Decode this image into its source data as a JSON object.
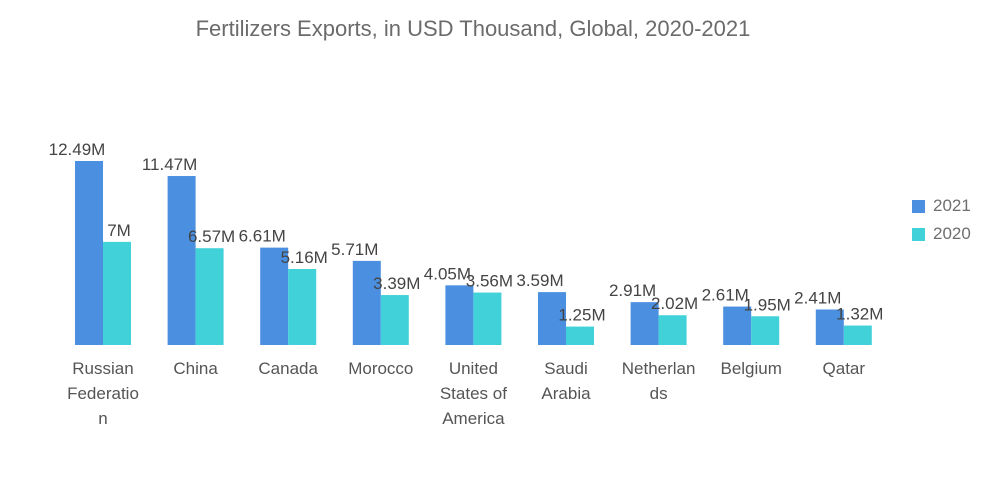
{
  "chart_data": {
    "type": "bar",
    "title": "Fertilizers Exports, in USD Thousand, Global, 2020-2021",
    "xlabel": "",
    "ylabel": "",
    "ylim": [
      0,
      12.49
    ],
    "categories": [
      [
        "Russian",
        "Federatio",
        "n"
      ],
      [
        "China"
      ],
      [
        "Canada"
      ],
      [
        "Morocco"
      ],
      [
        "United",
        "States of",
        "America"
      ],
      [
        "Saudi",
        "Arabia"
      ],
      [
        "Netherlan",
        "ds"
      ],
      [
        "Belgium"
      ],
      [
        "Qatar"
      ]
    ],
    "series": [
      {
        "name": "2021",
        "color": "#4a8fe0",
        "values": [
          12.49,
          11.47,
          6.61,
          5.71,
          4.05,
          3.59,
          2.91,
          2.61,
          2.41
        ],
        "labels": [
          "12.49M",
          "11.47M",
          "6.61M",
          "5.71M",
          "4.05M",
          "3.59M",
          "2.91M",
          "2.61M",
          "2.41M"
        ]
      },
      {
        "name": "2020",
        "color": "#40d2d8",
        "values": [
          7.0,
          6.57,
          5.16,
          3.39,
          3.56,
          1.25,
          2.02,
          1.95,
          1.32
        ],
        "labels": [
          "7M",
          "6.57M",
          "5.16M",
          "3.39M",
          "3.56M",
          "1.25M",
          "2.02M",
          "1.95M",
          "1.32M"
        ]
      }
    ],
    "legend_position": "right"
  }
}
